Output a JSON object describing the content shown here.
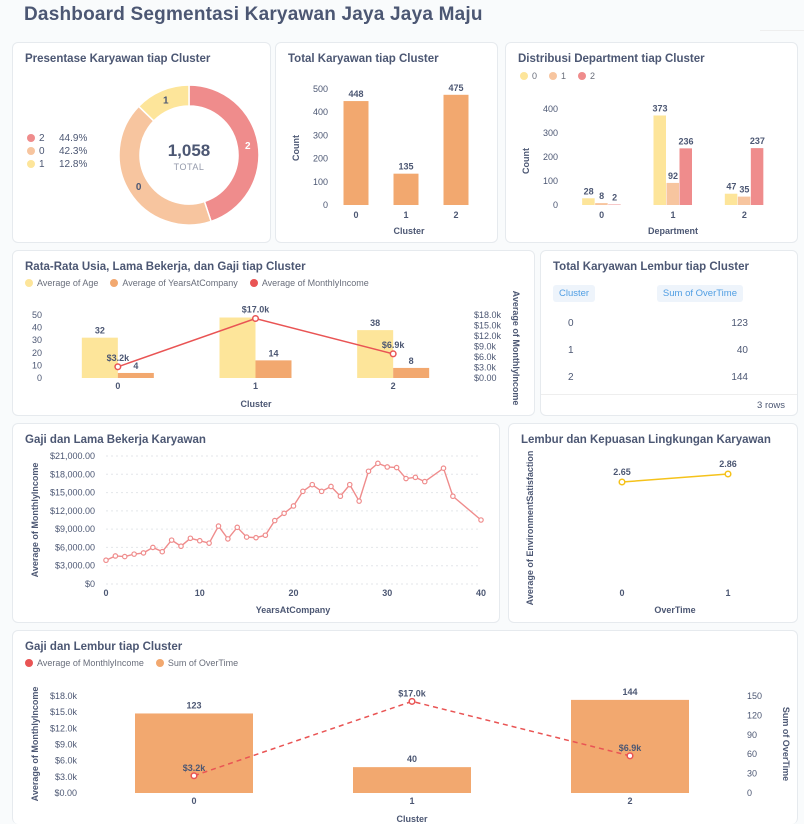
{
  "dashboard": {
    "title": "Dashboard Segmentasi Karyawan Jaya Jaya Maju"
  },
  "colors": {
    "c0": "#f7c59f",
    "c1": "#fde59a",
    "c2": "#ef8c8c",
    "orange": "#f2a86f",
    "red": "#e95454",
    "yellow": "#f5c21b",
    "salmon": "#ef8c8c",
    "paleyellow": "#fde59a"
  },
  "cards": {
    "pie": {
      "title": "Presentase Karyawan tiap Cluster",
      "total_value": "1,058",
      "total_label": "TOTAL",
      "legend": [
        {
          "name": "2",
          "pct": "44.9%",
          "color": "#ef8c8c"
        },
        {
          "name": "0",
          "pct": "42.3%",
          "color": "#f7c59f"
        },
        {
          "name": "1",
          "pct": "12.8%",
          "color": "#fde59a"
        }
      ]
    },
    "total": {
      "title": "Total Karyawan tiap Cluster"
    },
    "dept": {
      "title": "Distribusi Department tiap Cluster"
    },
    "avg": {
      "title": "Rata-Rata Usia, Lama Bekerja, dan Gaji tiap Cluster"
    },
    "overtime_table": {
      "title": "Total Karyawan Lembur tiap Cluster",
      "columns": [
        "Cluster",
        "Sum of OverTime"
      ],
      "rows": [
        [
          "0",
          "123"
        ],
        [
          "1",
          "40"
        ],
        [
          "2",
          "144"
        ]
      ],
      "footer": "3 rows"
    },
    "salary": {
      "title": "Gaji dan Lama Bekerja Karyawan"
    },
    "env": {
      "title": "Lembur dan Kepuasan Lingkungan Karyawan"
    },
    "combo": {
      "title": "Gaji dan Lembur tiap Cluster"
    }
  },
  "chart_data": [
    {
      "id": "pie",
      "type": "pie",
      "categories": [
        "2",
        "0",
        "1"
      ],
      "values": [
        475,
        448,
        135
      ],
      "total": 1058,
      "percent": [
        "44.9%",
        "42.3%",
        "12.8%"
      ]
    },
    {
      "id": "total",
      "type": "bar",
      "categories": [
        "0",
        "1",
        "2"
      ],
      "values": [
        448,
        135,
        475
      ],
      "xlabel": "Cluster",
      "ylabel": "Count",
      "ylim": [
        0,
        500
      ],
      "yticks": [
        "0",
        "100",
        "200",
        "300",
        "400",
        "500"
      ]
    },
    {
      "id": "dept",
      "type": "bar",
      "categories": [
        "0",
        "1",
        "2"
      ],
      "series": [
        {
          "name": "0",
          "values": [
            28,
            373,
            47
          ]
        },
        {
          "name": "1",
          "values": [
            8,
            92,
            35
          ]
        },
        {
          "name": "2",
          "values": [
            2,
            236,
            237
          ]
        }
      ],
      "xlabel": "Department",
      "ylabel": "Count",
      "ylim": [
        0,
        400
      ],
      "yticks": [
        "0",
        "100",
        "200",
        "300",
        "400"
      ],
      "legend": "top-left"
    },
    {
      "id": "avg",
      "type": "bar",
      "categories": [
        "0",
        "1",
        "2"
      ],
      "series": [
        {
          "name": "Average of Age",
          "values": [
            32,
            48,
            38
          ]
        },
        {
          "name": "Average of YearsAtCompany",
          "values": [
            4,
            14,
            8
          ]
        },
        {
          "name": "Average of MonthlyIncome",
          "values": [
            3200,
            17000,
            6900
          ],
          "type": "line",
          "labels": [
            "$3.2k",
            "$17.0k",
            "$6.9k"
          ]
        }
      ],
      "bar_labels": [
        [
          "32",
          "",
          "38"
        ],
        [
          "4",
          "14",
          "8"
        ]
      ],
      "xlabel": "Cluster",
      "ylabel_right": "Average of MonthlyIncome",
      "ylim": [
        0,
        50
      ],
      "yticks": [
        "0",
        "10",
        "20",
        "30",
        "40",
        "50"
      ],
      "ylim_right": [
        0,
        18000
      ],
      "yticks_right": [
        "$0.00",
        "$3.0k",
        "$6.0k",
        "$9.0k",
        "$12.0k",
        "$15.0k",
        "$18.0k"
      ]
    },
    {
      "id": "salary",
      "type": "line",
      "x": [
        0,
        1,
        2,
        3,
        4,
        5,
        6,
        7,
        8,
        9,
        10,
        11,
        12,
        13,
        14,
        15,
        16,
        17,
        18,
        19,
        20,
        21,
        22,
        23,
        24,
        25,
        26,
        27,
        28,
        29,
        30,
        31,
        32,
        33,
        34,
        36,
        37,
        40
      ],
      "y": [
        3900,
        4600,
        4500,
        4900,
        5100,
        6000,
        5300,
        7200,
        6200,
        7500,
        7100,
        6700,
        9500,
        7400,
        9300,
        7700,
        7600,
        8000,
        10400,
        11600,
        12800,
        15200,
        16300,
        15200,
        16000,
        14400,
        16300,
        13600,
        18500,
        19800,
        19200,
        19100,
        17300,
        17500,
        16800,
        19000,
        14400,
        10500
      ],
      "xlabel": "YearsAtCompany",
      "ylabel": "Average of MonthlyIncome",
      "xlim": [
        0,
        40
      ],
      "xticks": [
        "0",
        "10",
        "20",
        "30",
        "40"
      ],
      "ylim": [
        0,
        21000
      ],
      "yticks": [
        "$0",
        "$3,000.00",
        "$6,000.00",
        "$9,000.00",
        "$12,000.00",
        "$15,000.00",
        "$18,000.00",
        "$21,000.00"
      ]
    },
    {
      "id": "env",
      "type": "line",
      "categories": [
        "0",
        "1"
      ],
      "values": [
        2.65,
        2.86
      ],
      "labels": [
        "2.65",
        "2.86"
      ],
      "xlabel": "OverTime",
      "ylabel": "Average of EnvironmentSatisfaction"
    },
    {
      "id": "combo",
      "type": "bar",
      "categories": [
        "0",
        "1",
        "2"
      ],
      "series": [
        {
          "name": "Average of MonthlyIncome",
          "values": [
            3200,
            17000,
            6900
          ],
          "type": "line",
          "labels": [
            "$3.2k",
            "$17.0k",
            "$6.9k"
          ]
        },
        {
          "name": "Sum of OverTime",
          "values": [
            123,
            40,
            144
          ],
          "type": "bar",
          "labels": [
            "123",
            "40",
            "144"
          ]
        }
      ],
      "xlabel": "Cluster",
      "ylabel": "Average of MonthlyIncome",
      "ylabel_right": "Sum of OverTime",
      "ylim": [
        0,
        18000
      ],
      "yticks": [
        "$0.00",
        "$3.0k",
        "$6.0k",
        "$9.0k",
        "$12.0k",
        "$15.0k",
        "$18.0k"
      ],
      "ylim_right": [
        0,
        150
      ],
      "yticks_right": [
        "0",
        "30",
        "60",
        "90",
        "120",
        "150"
      ]
    }
  ]
}
